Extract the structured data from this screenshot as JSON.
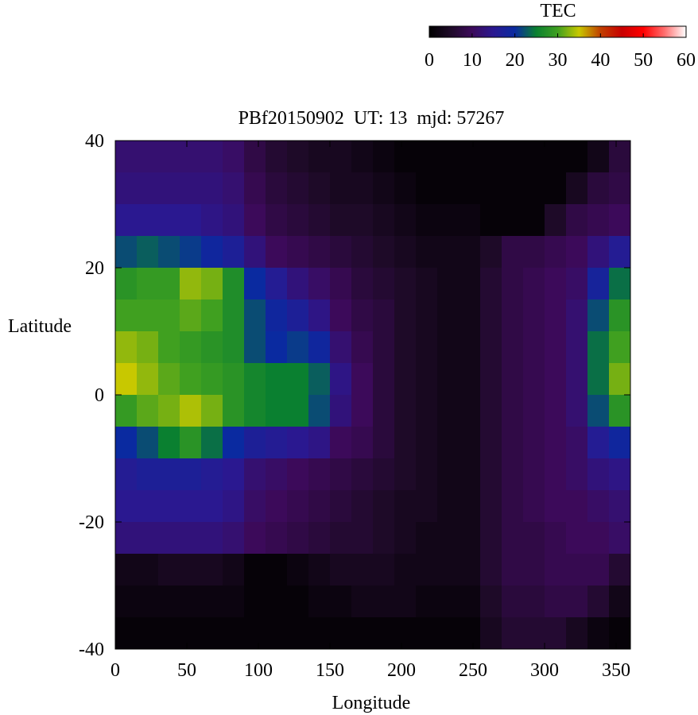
{
  "chart_data": {
    "type": "heatmap",
    "title": "PBf20150902  UT: 13  mjd: 57267",
    "x_label": "Longitude",
    "y_label": "Latitude",
    "x": [
      7.5,
      22.5,
      37.5,
      52.5,
      67.5,
      82.5,
      97.5,
      112.5,
      127.5,
      142.5,
      157.5,
      172.5,
      187.5,
      202.5,
      217.5,
      232.5,
      247.5,
      262.5,
      277.5,
      292.5,
      307.5,
      322.5,
      337.5,
      352.5
    ],
    "y": [
      37.5,
      32.5,
      27.5,
      22.5,
      17.5,
      12.5,
      7.5,
      2.5,
      -2.5,
      -7.5,
      -12.5,
      -17.5,
      -22.5,
      -27.5,
      -32.5,
      -37.5
    ],
    "z": [
      [
        12,
        12,
        12,
        12,
        12,
        11,
        8,
        6,
        5,
        4,
        4,
        3,
        2,
        1,
        1,
        1,
        1,
        1,
        1,
        1,
        1,
        1,
        3,
        7
      ],
      [
        13,
        13,
        13,
        13,
        13,
        12,
        9,
        7,
        6,
        5,
        4,
        4,
        3,
        2,
        1,
        1,
        1,
        1,
        1,
        1,
        1,
        4,
        7,
        8
      ],
      [
        15,
        15,
        15,
        15,
        14,
        13,
        10,
        8,
        7,
        6,
        5,
        5,
        4,
        3,
        2,
        2,
        2,
        1,
        1,
        1,
        5,
        8,
        9,
        10
      ],
      [
        22,
        23,
        22,
        21,
        19,
        17,
        13,
        10,
        9,
        8,
        7,
        6,
        5,
        4,
        3,
        3,
        3,
        5,
        8,
        8,
        9,
        10,
        13,
        16
      ],
      [
        28,
        29,
        29,
        33,
        32,
        27,
        20,
        16,
        13,
        11,
        9,
        7,
        6,
        5,
        4,
        3,
        3,
        6,
        8,
        9,
        10,
        11,
        18,
        24
      ],
      [
        30,
        30,
        30,
        31,
        30,
        27,
        22,
        19,
        17,
        14,
        10,
        8,
        7,
        5,
        4,
        3,
        3,
        6,
        8,
        9,
        10,
        12,
        22,
        28
      ],
      [
        33,
        32,
        30,
        29,
        28,
        27,
        22,
        20,
        21,
        19,
        12,
        9,
        7,
        5,
        4,
        3,
        3,
        6,
        8,
        9,
        10,
        12,
        24,
        30
      ],
      [
        35,
        33,
        31,
        30,
        29,
        28,
        26,
        25,
        25,
        23,
        14,
        10,
        7,
        5,
        4,
        3,
        3,
        6,
        8,
        9,
        10,
        12,
        24,
        32
      ],
      [
        29,
        31,
        32,
        34,
        32,
        28,
        26,
        25,
        25,
        22,
        13,
        10,
        7,
        5,
        4,
        3,
        3,
        6,
        8,
        9,
        10,
        12,
        22,
        28
      ],
      [
        20,
        22,
        25,
        28,
        24,
        20,
        17,
        16,
        15,
        14,
        10,
        9,
        7,
        5,
        4,
        3,
        3,
        6,
        8,
        9,
        10,
        11,
        16,
        19
      ],
      [
        16,
        17,
        17,
        17,
        16,
        15,
        12,
        11,
        10,
        9,
        8,
        7,
        6,
        5,
        4,
        3,
        3,
        6,
        8,
        9,
        10,
        11,
        13,
        14
      ],
      [
        15,
        15,
        15,
        15,
        15,
        14,
        11,
        10,
        9,
        8,
        7,
        6,
        5,
        4,
        4,
        3,
        3,
        6,
        8,
        9,
        10,
        10,
        11,
        12
      ],
      [
        13,
        13,
        13,
        13,
        13,
        12,
        10,
        9,
        8,
        7,
        6,
        6,
        5,
        4,
        3,
        3,
        3,
        6,
        8,
        8,
        9,
        10,
        10,
        11
      ],
      [
        3,
        3,
        4,
        4,
        4,
        3,
        1,
        1,
        2,
        3,
        4,
        4,
        4,
        3,
        3,
        3,
        3,
        6,
        8,
        8,
        9,
        9,
        9,
        6
      ],
      [
        2,
        2,
        2,
        2,
        2,
        2,
        1,
        1,
        1,
        2,
        2,
        3,
        3,
        3,
        2,
        2,
        2,
        5,
        7,
        7,
        8,
        8,
        6,
        3
      ],
      [
        1,
        1,
        1,
        1,
        1,
        1,
        1,
        1,
        1,
        1,
        1,
        1,
        1,
        1,
        1,
        1,
        1,
        4,
        6,
        6,
        6,
        4,
        2,
        1
      ]
    ],
    "xlim": [
      0,
      360
    ],
    "ylim": [
      -40,
      40
    ],
    "xticks": [
      0,
      50,
      100,
      150,
      200,
      250,
      300,
      350
    ],
    "yticks": [
      -40,
      -20,
      0,
      20,
      40
    ],
    "colorbar_label": "TEC",
    "zlim": [
      0,
      60
    ],
    "zticks": [
      0,
      10,
      20,
      30,
      40,
      50,
      60
    ],
    "colorscale": [
      "#000000",
      "#1e0a28",
      "#3c0a5a",
      "#2a1890",
      "#0a2aa0",
      "#0a8030",
      "#40a020",
      "#c8c800",
      "#c04000",
      "#c80000",
      "#ff0000",
      "#ff7070",
      "#ffffff"
    ]
  }
}
